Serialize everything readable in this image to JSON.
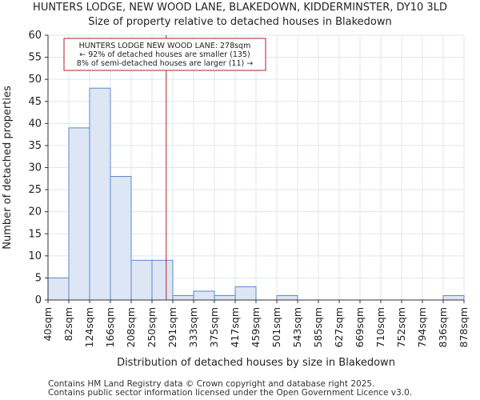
{
  "chart_data": {
    "type": "bar",
    "title": "HUNTERS LODGE, NEW WOOD LANE, BLAKEDOWN, KIDDERMINSTER, DY10 3LD",
    "subtitle": "Size of property relative to detached houses in Blakedown",
    "xlabel": "Distribution of detached houses by size in Blakedown",
    "ylabel": "Number of detached properties",
    "bin_edges": [
      40,
      82,
      124,
      166,
      208,
      250,
      291,
      333,
      375,
      417,
      459,
      501,
      543,
      585,
      627,
      669,
      710,
      752,
      794,
      836,
      878
    ],
    "tick_labels": [
      "40sqm",
      "82sqm",
      "124sqm",
      "166sqm",
      "208sqm",
      "250sqm",
      "291sqm",
      "333sqm",
      "375sqm",
      "417sqm",
      "459sqm",
      "501sqm",
      "543sqm",
      "585sqm",
      "627sqm",
      "669sqm",
      "710sqm",
      "752sqm",
      "794sqm",
      "836sqm",
      "878sqm"
    ],
    "values": [
      5,
      39,
      48,
      28,
      9,
      9,
      1,
      2,
      1,
      3,
      0,
      1,
      0,
      0,
      0,
      0,
      0,
      0,
      0,
      1
    ],
    "ylim": [
      0,
      60
    ],
    "yticks": [
      0,
      5,
      10,
      15,
      20,
      25,
      30,
      35,
      40,
      45,
      50,
      55,
      60
    ],
    "grid": true,
    "marker_value": 278,
    "annotation": {
      "lines": [
        "HUNTERS LODGE NEW WOOD LANE: 278sqm",
        "← 92% of detached houses are smaller (135)",
        "8% of semi-detached houses are larger (11) →"
      ]
    },
    "colors": {
      "bar_fill": "#dce6f5",
      "bar_edge": "#5b8ac9",
      "marker": "#b22222",
      "grid": "#dde6f2",
      "background": "#ffffff"
    }
  },
  "footer": {
    "line1": "Contains HM Land Registry data © Crown copyright and database right 2025.",
    "line2": "Contains public sector information licensed under the Open Government Licence v3.0."
  }
}
